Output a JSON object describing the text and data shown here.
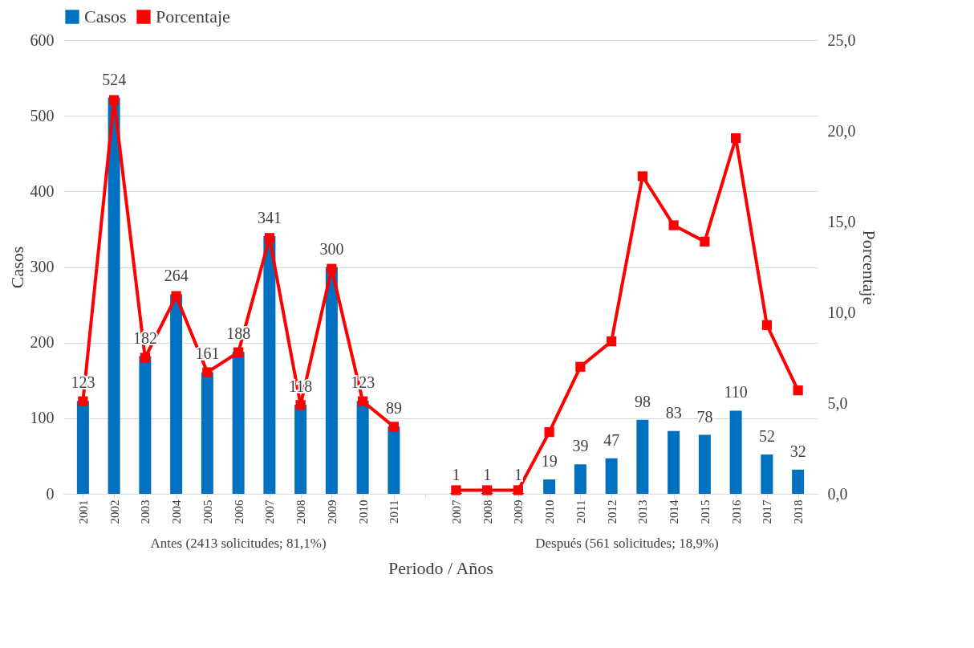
{
  "chart_data": {
    "type": "bar",
    "xlabel": "Periodo / Años",
    "ylabel": "Casos",
    "y2label": "Porcentaje",
    "categories": [
      "2001",
      "2002",
      "2003",
      "2004",
      "2005",
      "2006",
      "2007",
      "2008",
      "2009",
      "2010",
      "2011",
      null,
      "2007",
      "2008",
      "2009",
      "2010",
      "2011",
      "2012",
      "2013",
      "2014",
      "2015",
      "2016",
      "2017",
      "2018"
    ],
    "series": [
      {
        "name": "Casos",
        "color": "#0070c0",
        "values": [
          123,
          524,
          182,
          264,
          161,
          188,
          341,
          118,
          300,
          123,
          89,
          null,
          1,
          1,
          1,
          19,
          39,
          47,
          98,
          83,
          78,
          110,
          52,
          32
        ],
        "value_labels": [
          "123",
          "524",
          "182",
          "264",
          "161",
          "188",
          "341",
          "118",
          "300",
          "123",
          "89",
          null,
          "1",
          "1",
          "1",
          "19",
          "39",
          "47",
          "98",
          "83",
          "78",
          "110",
          "52",
          "32"
        ]
      },
      {
        "name": "Porcentaje",
        "type": "line",
        "axis": "y2",
        "color": "#ff0000",
        "marker": "square",
        "values": [
          5.1,
          21.7,
          7.5,
          10.9,
          6.7,
          7.8,
          14.1,
          4.9,
          12.4,
          5.1,
          3.7,
          null,
          0.2,
          0.2,
          0.2,
          3.4,
          7.0,
          8.4,
          17.5,
          14.8,
          13.9,
          19.6,
          9.3,
          5.7
        ]
      }
    ],
    "ylim": [
      0,
      600
    ],
    "yticks": [
      0,
      100,
      200,
      300,
      400,
      500,
      600
    ],
    "y2lim": [
      0,
      25
    ],
    "y2ticks": [
      {
        "value": 0,
        "label": "0,0"
      },
      {
        "value": 5,
        "label": "5,0"
      },
      {
        "value": 10,
        "label": "10,0"
      },
      {
        "value": 15,
        "label": "15,0"
      },
      {
        "value": 20,
        "label": "20,0"
      },
      {
        "value": 25,
        "label": "25,0"
      }
    ],
    "annotations": [
      "Antes  (2413 solicitudes; 81,1%)",
      "Después (561 solicitudes; 18,9%)"
    ],
    "grid": "y",
    "legend": "top"
  }
}
